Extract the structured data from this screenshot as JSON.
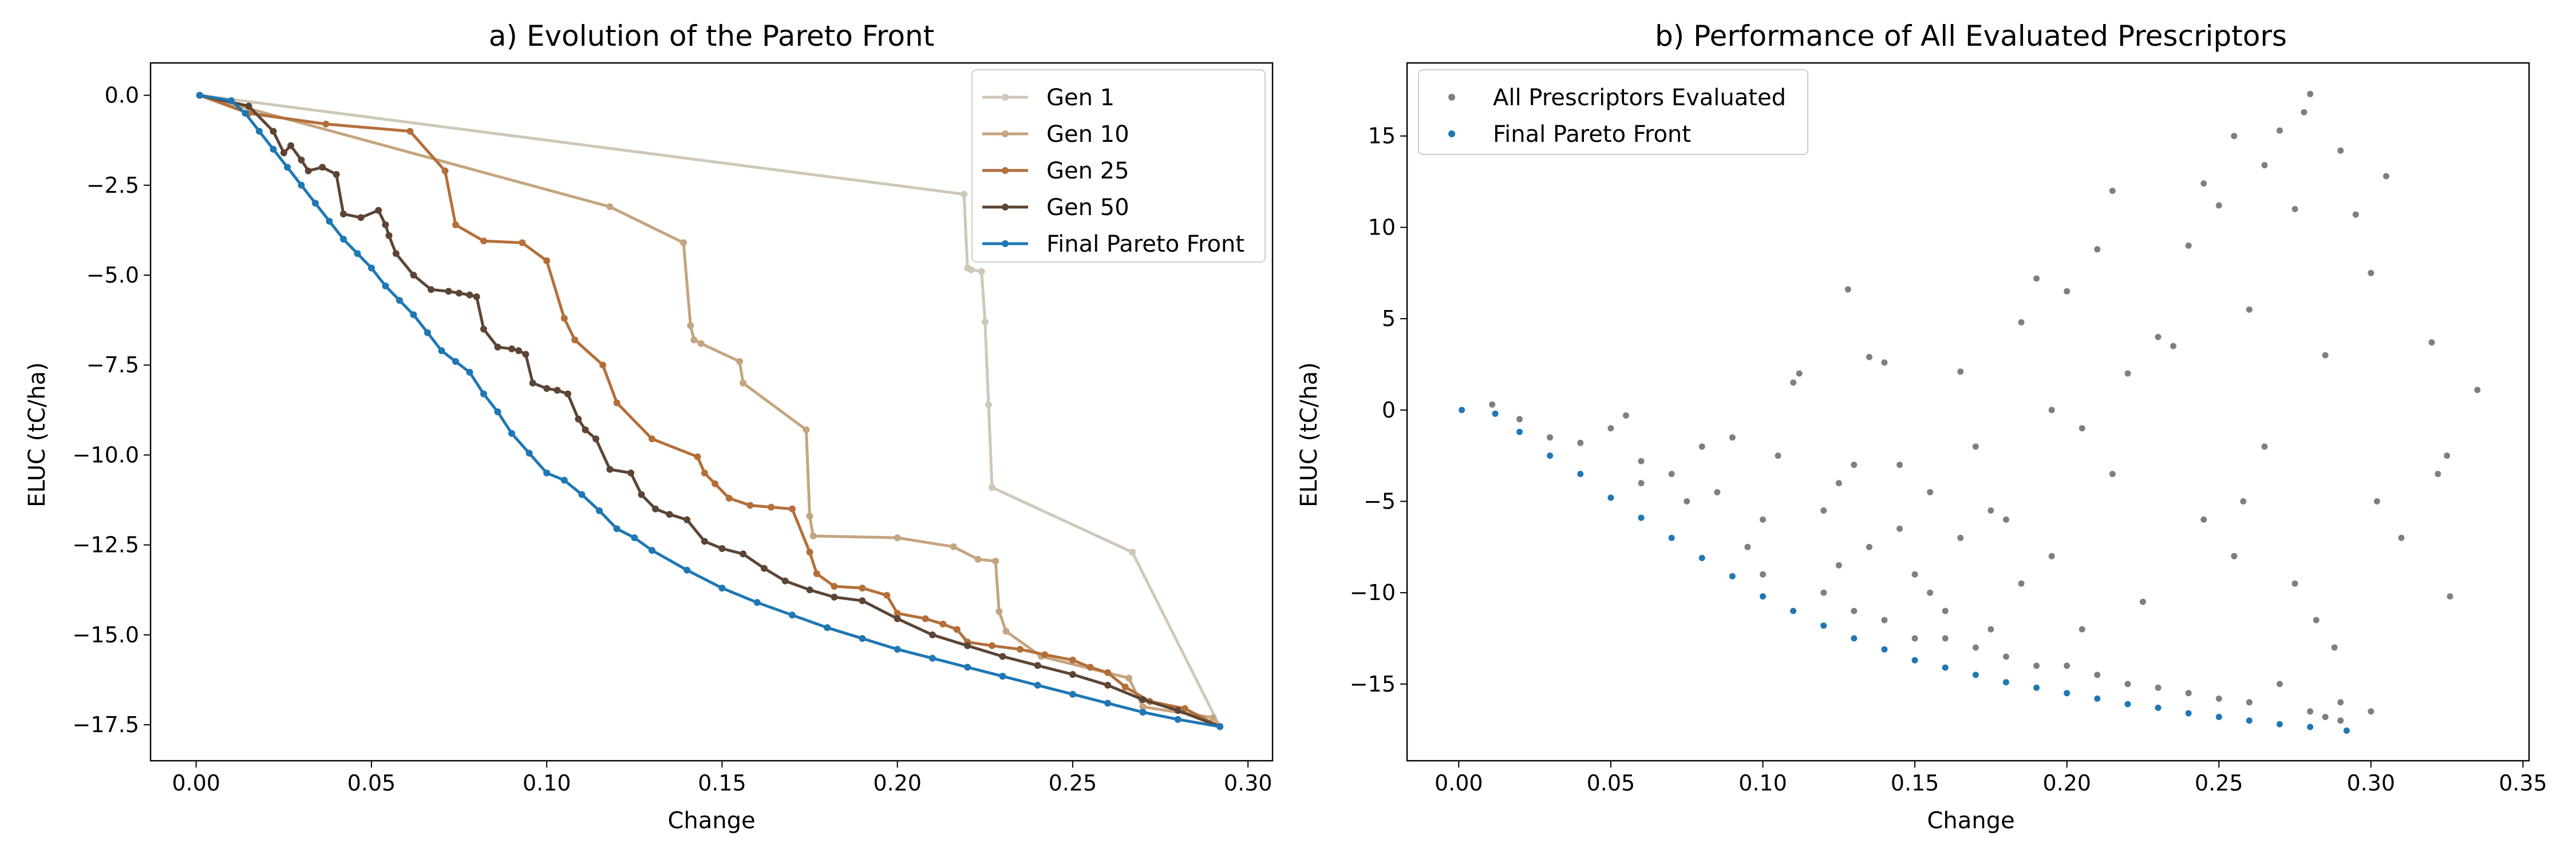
{
  "chart_data": [
    {
      "type": "line",
      "title": "a) Evolution of the Pareto Front",
      "xlabel": "Change",
      "ylabel": "ELUC (tC/ha)",
      "xlim": [
        -0.013,
        0.307
      ],
      "ylim": [
        -18.5,
        0.9
      ],
      "xticks": [
        {
          "value": 0.0,
          "label": "0.00"
        },
        {
          "value": 0.05,
          "label": "0.05"
        },
        {
          "value": 0.1,
          "label": "0.10"
        },
        {
          "value": 0.15,
          "label": "0.15"
        },
        {
          "value": 0.2,
          "label": "0.20"
        },
        {
          "value": 0.25,
          "label": "0.25"
        },
        {
          "value": 0.3,
          "label": "0.30"
        }
      ],
      "yticks": [
        {
          "value": 0.0,
          "label": "0.0"
        },
        {
          "value": -2.5,
          "label": "−2.5"
        },
        {
          "value": -5.0,
          "label": "−5.0"
        },
        {
          "value": -7.5,
          "label": "−7.5"
        },
        {
          "value": -10.0,
          "label": "−10.0"
        },
        {
          "value": -12.5,
          "label": "−12.5"
        },
        {
          "value": -15.0,
          "label": "−15.0"
        },
        {
          "value": -17.5,
          "label": "−17.5"
        }
      ],
      "grid": false,
      "legend_position": "top-right",
      "series": [
        {
          "name": "Gen 1",
          "color": "#cfc8b8",
          "x": [
            0.001,
            0.219,
            0.22,
            0.221,
            0.224,
            0.225,
            0.226,
            0.227,
            0.267,
            0.292
          ],
          "y": [
            0.0,
            -2.75,
            -4.8,
            -4.85,
            -4.9,
            -6.3,
            -8.6,
            -10.9,
            -12.7,
            -17.55
          ]
        },
        {
          "name": "Gen 10",
          "color": "#c4a57f",
          "x": [
            0.001,
            0.118,
            0.139,
            0.141,
            0.142,
            0.144,
            0.155,
            0.156,
            0.174,
            0.175,
            0.176,
            0.2,
            0.216,
            0.223,
            0.228,
            0.229,
            0.231,
            0.241,
            0.266,
            0.27,
            0.29,
            0.292
          ],
          "y": [
            0.0,
            -3.1,
            -4.1,
            -6.4,
            -6.8,
            -6.9,
            -7.4,
            -8.0,
            -9.3,
            -11.7,
            -12.25,
            -12.3,
            -12.55,
            -12.9,
            -12.95,
            -14.35,
            -14.9,
            -15.6,
            -16.2,
            -17.0,
            -17.3,
            -17.55
          ]
        },
        {
          "name": "Gen 25",
          "color": "#b36f3a",
          "x": [
            0.001,
            0.015,
            0.037,
            0.061,
            0.071,
            0.074,
            0.082,
            0.093,
            0.1,
            0.105,
            0.108,
            0.116,
            0.12,
            0.13,
            0.143,
            0.145,
            0.148,
            0.152,
            0.158,
            0.164,
            0.17,
            0.175,
            0.177,
            0.182,
            0.19,
            0.197,
            0.2,
            0.208,
            0.213,
            0.217,
            0.22,
            0.227,
            0.235,
            0.242,
            0.25,
            0.255,
            0.26,
            0.265,
            0.272,
            0.282,
            0.292
          ],
          "y": [
            0.0,
            -0.5,
            -0.8,
            -1.0,
            -2.1,
            -3.6,
            -4.05,
            -4.1,
            -4.6,
            -6.2,
            -6.8,
            -7.5,
            -8.55,
            -9.55,
            -10.05,
            -10.5,
            -10.8,
            -11.2,
            -11.4,
            -11.45,
            -11.5,
            -12.7,
            -13.3,
            -13.65,
            -13.7,
            -13.9,
            -14.4,
            -14.55,
            -14.7,
            -14.85,
            -15.2,
            -15.3,
            -15.4,
            -15.55,
            -15.7,
            -15.9,
            -16.05,
            -16.45,
            -16.85,
            -17.05,
            -17.55
          ]
        },
        {
          "name": "Gen 50",
          "color": "#5c4535",
          "x": [
            0.001,
            0.015,
            0.022,
            0.025,
            0.027,
            0.03,
            0.032,
            0.036,
            0.04,
            0.042,
            0.047,
            0.052,
            0.054,
            0.055,
            0.057,
            0.062,
            0.067,
            0.072,
            0.075,
            0.078,
            0.08,
            0.082,
            0.086,
            0.09,
            0.092,
            0.094,
            0.096,
            0.1,
            0.103,
            0.106,
            0.109,
            0.111,
            0.114,
            0.118,
            0.124,
            0.127,
            0.131,
            0.135,
            0.14,
            0.145,
            0.15,
            0.156,
            0.162,
            0.168,
            0.175,
            0.182,
            0.19,
            0.2,
            0.21,
            0.22,
            0.23,
            0.24,
            0.25,
            0.26,
            0.27,
            0.28,
            0.292
          ],
          "y": [
            0.0,
            -0.3,
            -1.0,
            -1.6,
            -1.4,
            -1.8,
            -2.1,
            -2.0,
            -2.2,
            -3.3,
            -3.4,
            -3.2,
            -3.6,
            -3.9,
            -4.4,
            -5.0,
            -5.4,
            -5.45,
            -5.5,
            -5.55,
            -5.6,
            -6.5,
            -7.0,
            -7.05,
            -7.1,
            -7.2,
            -8.0,
            -8.15,
            -8.2,
            -8.3,
            -9.0,
            -9.3,
            -9.55,
            -10.4,
            -10.5,
            -11.1,
            -11.5,
            -11.65,
            -11.8,
            -12.4,
            -12.6,
            -12.75,
            -13.15,
            -13.5,
            -13.75,
            -13.95,
            -14.05,
            -14.55,
            -15.0,
            -15.3,
            -15.6,
            -15.85,
            -16.1,
            -16.4,
            -16.8,
            -17.1,
            -17.55
          ]
        },
        {
          "name": "Final Pareto Front",
          "color": "#1f77b4",
          "x": [
            0.001,
            0.01,
            0.014,
            0.018,
            0.022,
            0.026,
            0.03,
            0.034,
            0.038,
            0.042,
            0.046,
            0.05,
            0.054,
            0.058,
            0.062,
            0.066,
            0.07,
            0.074,
            0.078,
            0.082,
            0.086,
            0.09,
            0.095,
            0.1,
            0.105,
            0.11,
            0.115,
            0.12,
            0.125,
            0.13,
            0.14,
            0.15,
            0.16,
            0.17,
            0.18,
            0.19,
            0.2,
            0.21,
            0.22,
            0.23,
            0.24,
            0.25,
            0.26,
            0.27,
            0.28,
            0.292
          ],
          "y": [
            0.0,
            -0.15,
            -0.5,
            -1.0,
            -1.5,
            -2.0,
            -2.5,
            -3.0,
            -3.5,
            -4.0,
            -4.4,
            -4.8,
            -5.3,
            -5.7,
            -6.1,
            -6.6,
            -7.1,
            -7.4,
            -7.7,
            -8.3,
            -8.8,
            -9.4,
            -9.95,
            -10.5,
            -10.7,
            -11.1,
            -11.55,
            -12.05,
            -12.3,
            -12.65,
            -13.2,
            -13.7,
            -14.1,
            -14.45,
            -14.8,
            -15.1,
            -15.4,
            -15.65,
            -15.9,
            -16.15,
            -16.4,
            -16.65,
            -16.9,
            -17.15,
            -17.35,
            -17.55
          ]
        }
      ]
    },
    {
      "type": "scatter",
      "title": "b) Performance of All Evaluated Prescriptors",
      "xlabel": "Change",
      "ylabel": "ELUC (tC/ha)",
      "xlim": [
        -0.017,
        0.352
      ],
      "ylim": [
        -19.2,
        19.0
      ],
      "xticks": [
        {
          "value": 0.0,
          "label": "0.00"
        },
        {
          "value": 0.05,
          "label": "0.05"
        },
        {
          "value": 0.1,
          "label": "0.10"
        },
        {
          "value": 0.15,
          "label": "0.15"
        },
        {
          "value": 0.2,
          "label": "0.20"
        },
        {
          "value": 0.25,
          "label": "0.25"
        },
        {
          "value": 0.3,
          "label": "0.30"
        },
        {
          "value": 0.35,
          "label": "0.35"
        }
      ],
      "yticks": [
        {
          "value": 15,
          "label": "15"
        },
        {
          "value": 10,
          "label": "10"
        },
        {
          "value": 5,
          "label": "5"
        },
        {
          "value": 0,
          "label": "0"
        },
        {
          "value": -5,
          "label": "−5"
        },
        {
          "value": -10,
          "label": "−10"
        },
        {
          "value": -15,
          "label": "−15"
        }
      ],
      "grid": false,
      "legend_position": "top-left",
      "series": [
        {
          "name": "All Prescriptors Evaluated",
          "color": "#7f7f7f",
          "points": [
            [
              0.011,
              0.3
            ],
            [
              0.02,
              -0.5
            ],
            [
              0.03,
              -1.5
            ],
            [
              0.04,
              -1.8
            ],
            [
              0.05,
              -1.0
            ],
            [
              0.055,
              -0.3
            ],
            [
              0.06,
              -2.8
            ],
            [
              0.07,
              -3.5
            ],
            [
              0.08,
              -2.0
            ],
            [
              0.085,
              -4.5
            ],
            [
              0.09,
              -1.5
            ],
            [
              0.1,
              -6.0
            ],
            [
              0.105,
              -2.5
            ],
            [
              0.11,
              1.5
            ],
            [
              0.112,
              2.0
            ],
            [
              0.12,
              -5.5
            ],
            [
              0.125,
              -8.5
            ],
            [
              0.128,
              6.6
            ],
            [
              0.13,
              -3.0
            ],
            [
              0.135,
              2.9
            ],
            [
              0.14,
              2.6
            ],
            [
              0.145,
              -6.5
            ],
            [
              0.15,
              -9.0
            ],
            [
              0.155,
              -4.5
            ],
            [
              0.16,
              -11.0
            ],
            [
              0.165,
              2.1
            ],
            [
              0.17,
              -2.0
            ],
            [
              0.175,
              -12.0
            ],
            [
              0.18,
              -6.0
            ],
            [
              0.185,
              4.8
            ],
            [
              0.19,
              7.2
            ],
            [
              0.195,
              -8.0
            ],
            [
              0.2,
              6.5
            ],
            [
              0.205,
              -1.0
            ],
            [
              0.21,
              8.8
            ],
            [
              0.215,
              12.0
            ],
            [
              0.22,
              2.0
            ],
            [
              0.225,
              -10.5
            ],
            [
              0.23,
              4.0
            ],
            [
              0.235,
              3.5
            ],
            [
              0.24,
              9.0
            ],
            [
              0.245,
              12.4
            ],
            [
              0.25,
              11.2
            ],
            [
              0.255,
              15.0
            ],
            [
              0.258,
              -5.0
            ],
            [
              0.26,
              5.5
            ],
            [
              0.265,
              13.4
            ],
            [
              0.27,
              15.3
            ],
            [
              0.275,
              11.0
            ],
            [
              0.278,
              16.3
            ],
            [
              0.28,
              17.3
            ],
            [
              0.285,
              3.0
            ],
            [
              0.29,
              14.2
            ],
            [
              0.295,
              10.7
            ],
            [
              0.3,
              7.5
            ],
            [
              0.302,
              -5.0
            ],
            [
              0.305,
              12.8
            ],
            [
              0.31,
              -7.0
            ],
            [
              0.32,
              3.7
            ],
            [
              0.322,
              -3.5
            ],
            [
              0.325,
              -2.5
            ],
            [
              0.326,
              -10.2
            ],
            [
              0.335,
              1.1
            ],
            [
              0.2,
              -14.0
            ],
            [
              0.22,
              -15.0
            ],
            [
              0.24,
              -15.5
            ],
            [
              0.26,
              -16.0
            ],
            [
              0.27,
              -15.0
            ],
            [
              0.28,
              -16.5
            ],
            [
              0.29,
              -17.0
            ],
            [
              0.15,
              -12.5
            ],
            [
              0.1,
              -9.0
            ],
            [
              0.12,
              -10.0
            ],
            [
              0.17,
              -13.0
            ],
            [
              0.18,
              -13.5
            ],
            [
              0.06,
              -4.0
            ],
            [
              0.075,
              -5.0
            ],
            [
              0.095,
              -7.5
            ],
            [
              0.13,
              -11.0
            ],
            [
              0.14,
              -11.5
            ],
            [
              0.16,
              -12.5
            ],
            [
              0.19,
              -14.0
            ],
            [
              0.21,
              -14.5
            ],
            [
              0.23,
              -15.2
            ],
            [
              0.25,
              -15.8
            ],
            [
              0.285,
              -16.8
            ],
            [
              0.29,
              -16.0
            ],
            [
              0.3,
              -16.5
            ],
            [
              0.245,
              -6.0
            ],
            [
              0.255,
              -8.0
            ],
            [
              0.265,
              -2.0
            ],
            [
              0.275,
              -9.5
            ],
            [
              0.282,
              -11.5
            ],
            [
              0.288,
              -13.0
            ],
            [
              0.215,
              -3.5
            ],
            [
              0.205,
              -12.0
            ],
            [
              0.195,
              0.0
            ],
            [
              0.185,
              -9.5
            ],
            [
              0.175,
              -5.5
            ],
            [
              0.165,
              -7.0
            ],
            [
              0.155,
              -10.0
            ],
            [
              0.145,
              -3.0
            ],
            [
              0.135,
              -7.5
            ],
            [
              0.125,
              -4.0
            ]
          ]
        },
        {
          "name": "Final Pareto Front",
          "color": "#1f77b4",
          "points": [
            [
              0.001,
              0.0
            ],
            [
              0.012,
              -0.2
            ],
            [
              0.02,
              -1.2
            ],
            [
              0.03,
              -2.5
            ],
            [
              0.04,
              -3.5
            ],
            [
              0.05,
              -4.8
            ],
            [
              0.06,
              -5.9
            ],
            [
              0.07,
              -7.0
            ],
            [
              0.08,
              -8.1
            ],
            [
              0.09,
              -9.1
            ],
            [
              0.1,
              -10.2
            ],
            [
              0.11,
              -11.0
            ],
            [
              0.12,
              -11.8
            ],
            [
              0.13,
              -12.5
            ],
            [
              0.14,
              -13.1
            ],
            [
              0.15,
              -13.7
            ],
            [
              0.16,
              -14.1
            ],
            [
              0.17,
              -14.5
            ],
            [
              0.18,
              -14.9
            ],
            [
              0.19,
              -15.2
            ],
            [
              0.2,
              -15.5
            ],
            [
              0.21,
              -15.8
            ],
            [
              0.22,
              -16.1
            ],
            [
              0.23,
              -16.3
            ],
            [
              0.24,
              -16.6
            ],
            [
              0.25,
              -16.8
            ],
            [
              0.26,
              -17.0
            ],
            [
              0.27,
              -17.2
            ],
            [
              0.28,
              -17.35
            ],
            [
              0.292,
              -17.55
            ]
          ]
        }
      ]
    }
  ]
}
